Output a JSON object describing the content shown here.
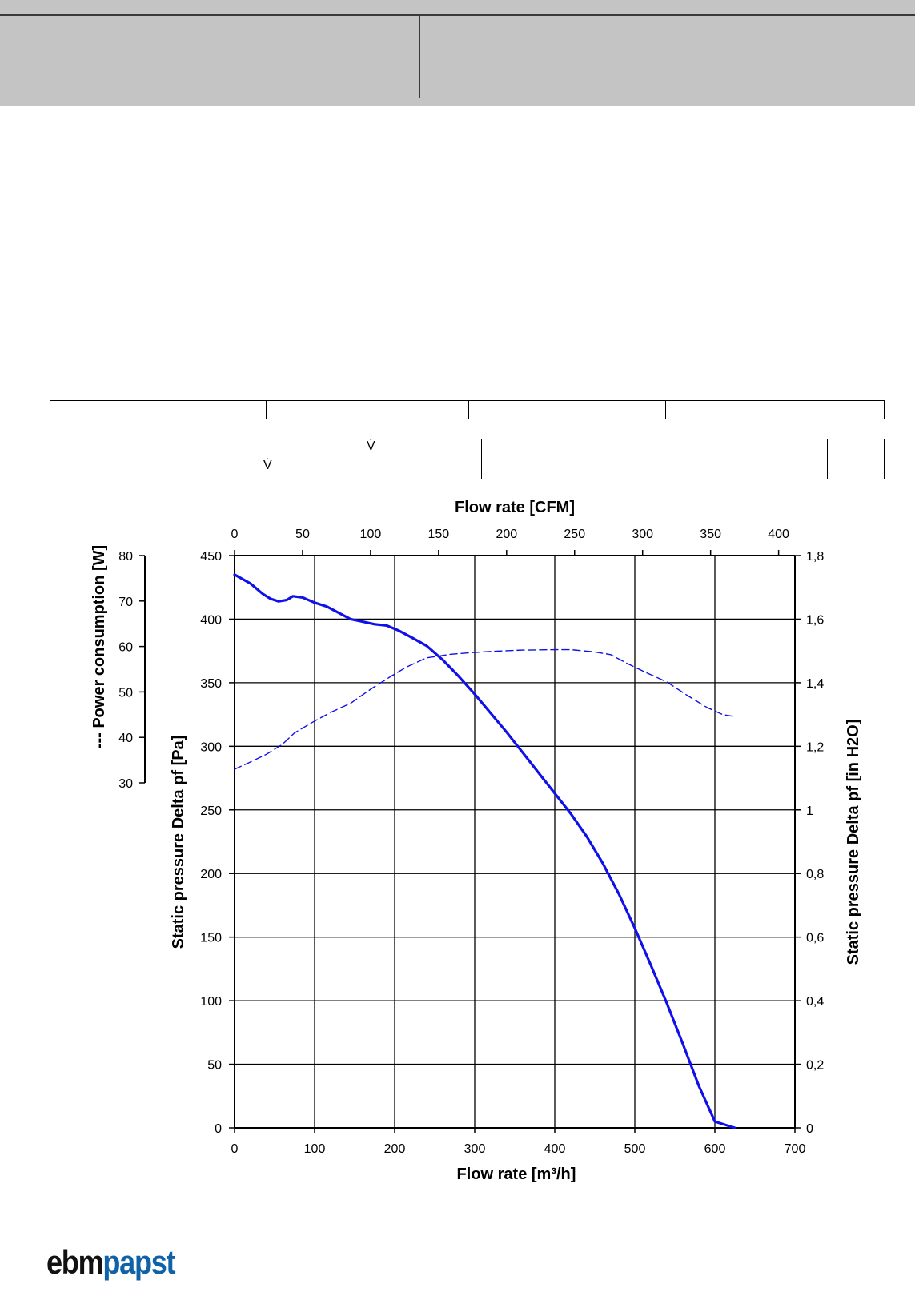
{
  "header": {},
  "info_tables": {
    "flow_symbol_1": "V̇",
    "flow_symbol_2": "V̇"
  },
  "logo": {
    "part1": "ebm",
    "part2": "papst"
  },
  "colors": {
    "curve": "#1010e8",
    "grid": "#000000",
    "header_bg": "#c4c4c4",
    "logo_blue": "#0f62a8"
  },
  "chart_data": {
    "type": "line",
    "x_bottom": {
      "label": "Flow rate [m³/h]",
      "range": [
        0,
        700
      ],
      "ticks": [
        0,
        100,
        200,
        300,
        400,
        500,
        600,
        700
      ]
    },
    "x_top": {
      "label": "Flow rate [CFM]",
      "range": [
        0,
        412
      ],
      "ticks": [
        0,
        50,
        100,
        150,
        200,
        250,
        300,
        350,
        400
      ]
    },
    "y_left": {
      "label": "Static pressure Delta pf [Pa]",
      "range": [
        0,
        450
      ],
      "ticks": [
        0,
        50,
        100,
        150,
        200,
        250,
        300,
        350,
        400,
        450
      ]
    },
    "y_right": {
      "label": "Static pressure Delta pf [in H2O]",
      "range": [
        0,
        1.8
      ],
      "ticks": [
        "0",
        "0,2",
        "0,4",
        "0,6",
        "0,8",
        "1",
        "1,2",
        "1,4",
        "1,6",
        "1,8"
      ]
    },
    "y_power": {
      "label": "--- Power consumption [W]",
      "range": [
        30,
        80
      ],
      "ticks": [
        30,
        40,
        50,
        60,
        70,
        80
      ]
    },
    "grid": true,
    "series": [
      {
        "style": "solid",
        "axis": "pressure",
        "points": [
          [
            0,
            435
          ],
          [
            20,
            428
          ],
          [
            35,
            420
          ],
          [
            45,
            416
          ],
          [
            55,
            414
          ],
          [
            65,
            415
          ],
          [
            73,
            418
          ],
          [
            85,
            417
          ],
          [
            100,
            413
          ],
          [
            115,
            410
          ],
          [
            130,
            405
          ],
          [
            145,
            400
          ],
          [
            160,
            398
          ],
          [
            175,
            396
          ],
          [
            190,
            395
          ],
          [
            205,
            391
          ],
          [
            220,
            386
          ],
          [
            240,
            379
          ],
          [
            260,
            368
          ],
          [
            280,
            355
          ],
          [
            300,
            341
          ],
          [
            320,
            326
          ],
          [
            340,
            311
          ],
          [
            360,
            295
          ],
          [
            380,
            279
          ],
          [
            400,
            263
          ],
          [
            420,
            247
          ],
          [
            440,
            229
          ],
          [
            460,
            208
          ],
          [
            480,
            184
          ],
          [
            500,
            157
          ],
          [
            520,
            128
          ],
          [
            540,
            98
          ],
          [
            560,
            66
          ],
          [
            580,
            33
          ],
          [
            600,
            5
          ],
          [
            625,
            0
          ]
        ]
      },
      {
        "style": "dashed",
        "axis": "power",
        "points": [
          [
            0,
            33.0
          ],
          [
            20,
            34.6
          ],
          [
            40,
            36.3
          ],
          [
            60,
            38.5
          ],
          [
            75,
            41.0
          ],
          [
            100,
            43.6
          ],
          [
            120,
            45.5
          ],
          [
            145,
            47.5
          ],
          [
            170,
            50.6
          ],
          [
            195,
            53.4
          ],
          [
            215,
            55.5
          ],
          [
            240,
            57.5
          ],
          [
            270,
            58.3
          ],
          [
            300,
            58.7
          ],
          [
            330,
            59.0
          ],
          [
            360,
            59.2
          ],
          [
            400,
            59.3
          ],
          [
            420,
            59.3
          ],
          [
            450,
            58.8
          ],
          [
            470,
            58.2
          ],
          [
            490,
            56.3
          ],
          [
            510,
            54.6
          ],
          [
            540,
            52.2
          ],
          [
            565,
            49.3
          ],
          [
            590,
            46.6
          ],
          [
            610,
            45.0
          ],
          [
            625,
            44.6
          ]
        ]
      }
    ]
  }
}
